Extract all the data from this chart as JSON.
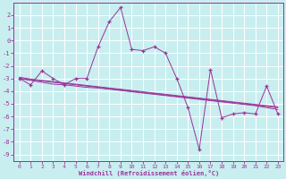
{
  "xlabel": "Windchill (Refroidissement éolien,°C)",
  "bg_color": "#c8eef0",
  "grid_color": "#ffffff",
  "line_color": "#993399",
  "x_data": [
    0,
    1,
    2,
    3,
    4,
    5,
    6,
    7,
    8,
    9,
    10,
    11,
    12,
    13,
    14,
    15,
    16,
    17,
    18,
    19,
    20,
    21,
    22,
    23
  ],
  "y_main": [
    -3.0,
    -3.5,
    -2.4,
    -3.0,
    -3.5,
    -3.0,
    -3.0,
    -0.5,
    1.5,
    2.6,
    -0.7,
    -0.8,
    -0.5,
    -1.0,
    -3.0,
    -5.3,
    -8.6,
    -2.3,
    -6.1,
    -5.8,
    -5.7,
    -5.8,
    -3.6,
    -5.8
  ],
  "y_reg1": [
    -3.0,
    -3.1,
    -3.2,
    -3.3,
    -3.4,
    -3.5,
    -3.6,
    -3.7,
    -3.8,
    -3.9,
    -4.0,
    -4.1,
    -4.2,
    -4.3,
    -4.4,
    -4.5,
    -4.6,
    -4.7,
    -4.8,
    -4.9,
    -5.0,
    -5.1,
    -5.2,
    -5.3
  ],
  "y_reg2": [
    -3.0,
    -3.15,
    -3.3,
    -3.45,
    -3.5,
    -3.6,
    -3.7,
    -3.75,
    -3.85,
    -3.95,
    -4.05,
    -4.15,
    -4.25,
    -4.35,
    -4.45,
    -4.55,
    -4.65,
    -4.75,
    -4.85,
    -4.95,
    -5.05,
    -5.15,
    -5.3,
    -5.45
  ],
  "y_reg3": [
    -2.9,
    -3.05,
    -3.15,
    -3.25,
    -3.35,
    -3.45,
    -3.55,
    -3.65,
    -3.75,
    -3.85,
    -3.95,
    -4.05,
    -4.15,
    -4.25,
    -4.35,
    -4.45,
    -4.55,
    -4.65,
    -4.75,
    -4.85,
    -4.95,
    -5.05,
    -5.15,
    -5.25
  ],
  "ylim": [
    -9.5,
    3.0
  ],
  "xlim": [
    -0.5,
    23.5
  ],
  "yticks": [
    2,
    1,
    0,
    -1,
    -2,
    -3,
    -4,
    -5,
    -6,
    -7,
    -8,
    -9
  ],
  "xticks": [
    0,
    1,
    2,
    3,
    4,
    5,
    6,
    7,
    8,
    9,
    10,
    11,
    12,
    13,
    14,
    15,
    16,
    17,
    18,
    19,
    20,
    21,
    22,
    23
  ]
}
